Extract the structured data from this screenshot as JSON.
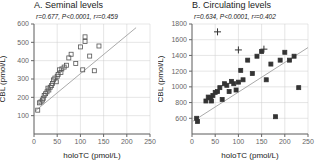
{
  "chart_data": [
    {
      "type": "scatter",
      "title": "A. Seminal levels",
      "annotation": "r=0.677, P<0.0001, r²=0.459",
      "xlabel": "holoTC (pmol/L)",
      "ylabel": "CBL (pmol/L)",
      "xlim": [
        0,
        250
      ],
      "ylim": [
        0,
        600
      ],
      "xticks": [
        0,
        50,
        100,
        150,
        200,
        250
      ],
      "yticks": [
        100,
        200,
        300,
        400,
        500,
        600
      ],
      "grid": true,
      "series": [
        {
          "type": "line",
          "color": "#aaaaaa",
          "x": [
            0,
            220
          ],
          "values": [
            120,
            580
          ]
        },
        {
          "type": "scatter",
          "marker": "open square",
          "color": "#555555",
          "x": [
            8,
            12,
            15,
            18,
            20,
            22,
            25,
            28,
            30,
            32,
            35,
            38,
            40,
            42,
            45,
            48,
            50,
            52,
            55,
            58,
            60,
            65,
            70,
            75,
            80,
            90,
            100,
            105,
            110,
            120,
            130,
            140
          ],
          "values": [
            130,
            170,
            175,
            185,
            195,
            210,
            220,
            230,
            250,
            240,
            255,
            265,
            275,
            295,
            305,
            285,
            315,
            325,
            350,
            335,
            355,
            365,
            375,
            415,
            435,
            385,
            475,
            350,
            505,
            425,
            345,
            480
          ]
        },
        {
          "type": "scatter",
          "marker": "open square",
          "color": "#555555",
          "x": [
            110
          ],
          "values": [
            530
          ]
        }
      ]
    },
    {
      "type": "scatter",
      "title": "B. Circulating levels",
      "annotation": "r=0.634, P<0.0001, r²=0.402",
      "xlabel": "holoTC (pmol/L)",
      "ylabel": "CBL (pmol/L)",
      "xlim": [
        0,
        250
      ],
      "ylim": [
        400,
        1800
      ],
      "xticks": [
        0,
        50,
        100,
        150,
        200,
        250
      ],
      "yticks": [
        600,
        800,
        1000,
        1200,
        1400,
        1600,
        1800
      ],
      "grid": true,
      "series": [
        {
          "type": "line",
          "color": "#aaaaaa",
          "x": [
            0,
            250
          ],
          "values": [
            555,
            1500
          ]
        },
        {
          "type": "scatter",
          "marker": "square",
          "color": "#333333",
          "x": [
            10,
            12,
            30,
            35,
            40,
            42,
            45,
            50,
            55,
            60,
            65,
            70,
            75,
            80,
            85,
            90,
            95,
            100,
            105,
            110,
            120,
            130,
            140,
            150,
            160,
            170,
            180,
            190,
            200,
            210,
            220,
            230
          ],
          "values": [
            600,
            560,
            820,
            870,
            860,
            820,
            890,
            930,
            940,
            990,
            840,
            1040,
            1020,
            940,
            1070,
            1040,
            960,
            1060,
            1210,
            1090,
            1340,
            1170,
            1390,
            1450,
            1090,
            1290,
            620,
            1340,
            1440,
            1340,
            1390,
            990
          ]
        },
        {
          "type": "scatter",
          "marker": "plus",
          "color": "#333333",
          "x": [
            55,
            100,
            155
          ],
          "values": [
            1700,
            1470,
            1480
          ]
        }
      ]
    }
  ]
}
